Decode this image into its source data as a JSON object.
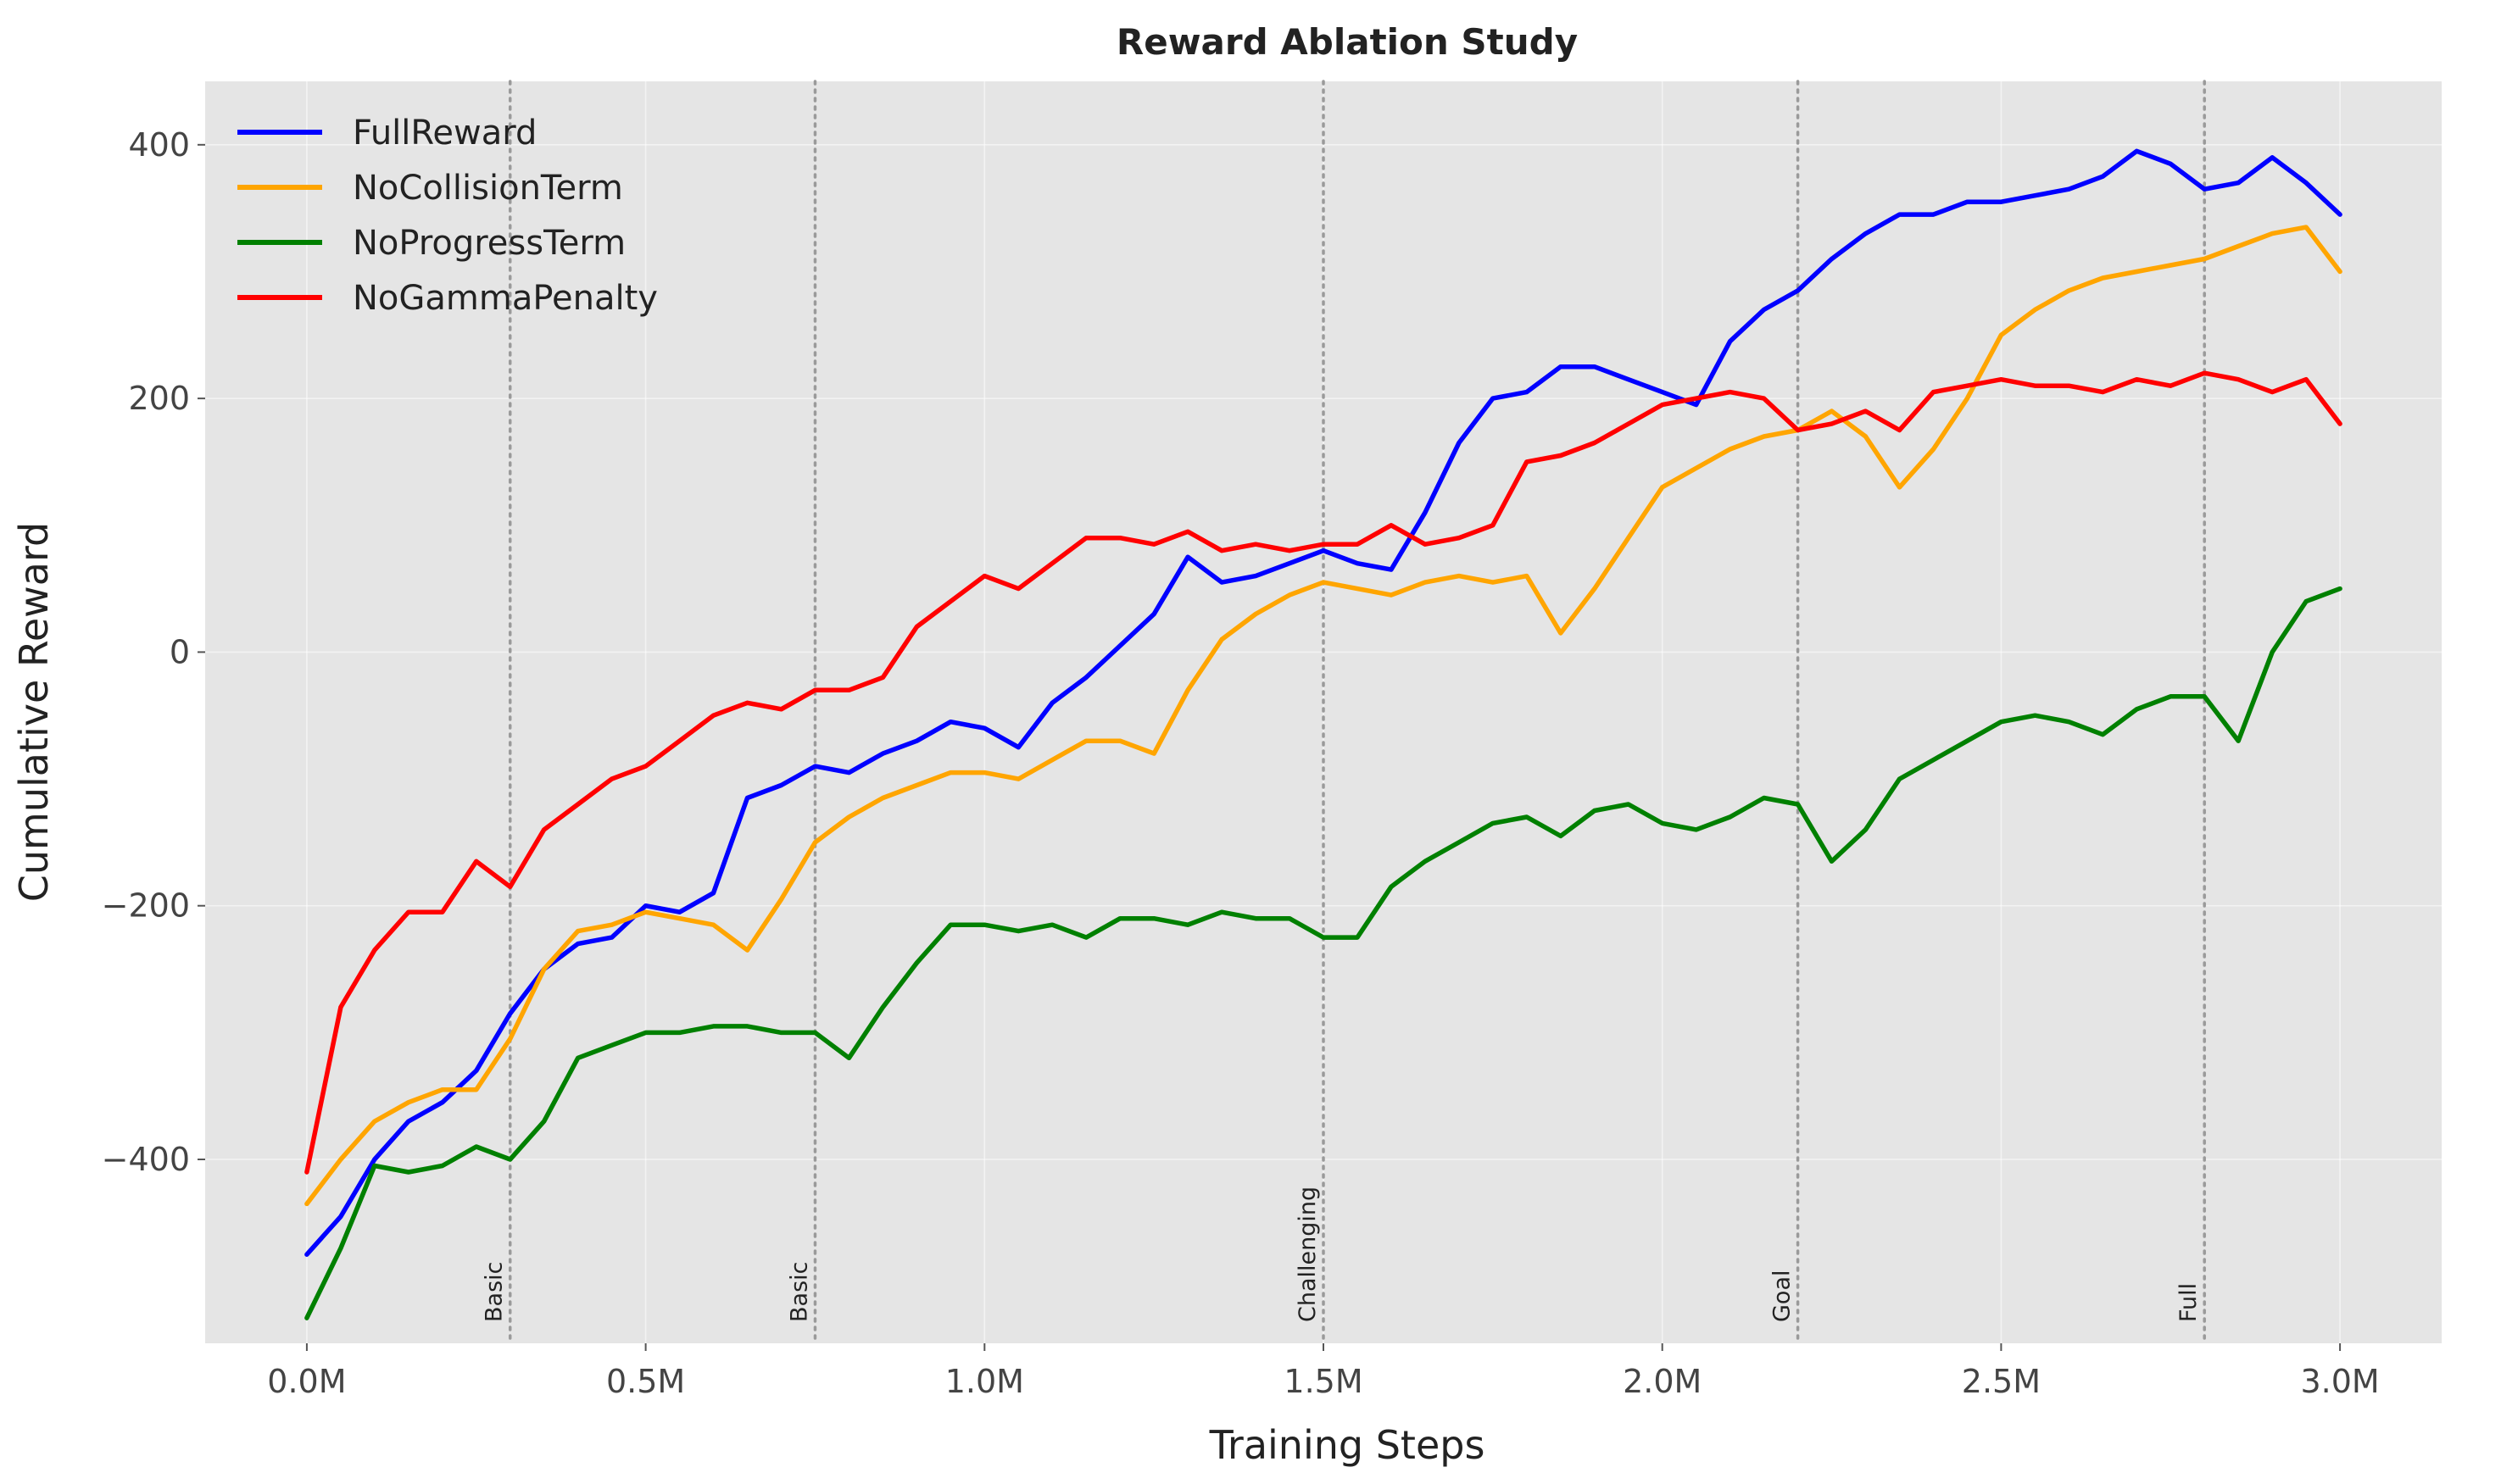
{
  "chart_data": {
    "type": "line",
    "title": "Reward Ablation Study",
    "xlabel": "Training Steps",
    "ylabel": "Cumulative Reward",
    "xlim": [
      -150000,
      3150000
    ],
    "ylim": [
      -545,
      450
    ],
    "x_ticks": [
      0,
      500000,
      1000000,
      1500000,
      2000000,
      2500000,
      3000000
    ],
    "x_tick_labels": [
      "0.0M",
      "0.5M",
      "1.0M",
      "1.5M",
      "2.0M",
      "2.5M",
      "3.0M"
    ],
    "y_ticks": [
      -400,
      -200,
      0,
      200,
      400
    ],
    "y_tick_labels": [
      "−400",
      "−200",
      "0",
      "200",
      "400"
    ],
    "grid": true,
    "legend_position": "top-left",
    "stage_markers": [
      {
        "x": 300000,
        "label": "Basic"
      },
      {
        "x": 750000,
        "label": "Basic"
      },
      {
        "x": 1500000,
        "label": "Challenging"
      },
      {
        "x": 2200000,
        "label": "Goal"
      },
      {
        "x": 2800000,
        "label": "Full"
      }
    ],
    "series": [
      {
        "name": "FullReward",
        "color": "#0000ff",
        "x": [
          0,
          50000,
          100000,
          150000,
          200000,
          250000,
          300000,
          350000,
          400000,
          450000,
          500000,
          550000,
          600000,
          650000,
          700000,
          750000,
          800000,
          850000,
          900000,
          950000,
          1000000,
          1050000,
          1100000,
          1150000,
          1200000,
          1250000,
          1300000,
          1350000,
          1400000,
          1450000,
          1500000,
          1550000,
          1600000,
          1650000,
          1700000,
          1750000,
          1800000,
          1850000,
          1900000,
          1950000,
          2000000,
          2050000,
          2100000,
          2150000,
          2200000,
          2250000,
          2300000,
          2350000,
          2400000,
          2450000,
          2500000,
          2550000,
          2600000,
          2650000,
          2700000,
          2750000,
          2800000,
          2850000,
          2900000,
          2950000,
          3000000
        ],
        "y": [
          -475,
          -445,
          -400,
          -370,
          -355,
          -330,
          -285,
          -250,
          -230,
          -225,
          -200,
          -205,
          -190,
          -115,
          -105,
          -90,
          -95,
          -80,
          -70,
          -55,
          -60,
          -75,
          -40,
          -20,
          5,
          30,
          75,
          55,
          60,
          70,
          80,
          70,
          65,
          110,
          165,
          200,
          205,
          225,
          225,
          215,
          205,
          195,
          245,
          270,
          285,
          310,
          330,
          345,
          345,
          355,
          355,
          360,
          365,
          375,
          395,
          385,
          365,
          370,
          390,
          370,
          345
        ]
      },
      {
        "name": "NoCollisionTerm",
        "color": "#ffa500",
        "x": [
          0,
          50000,
          100000,
          150000,
          200000,
          250000,
          300000,
          350000,
          400000,
          450000,
          500000,
          550000,
          600000,
          650000,
          700000,
          750000,
          800000,
          850000,
          900000,
          950000,
          1000000,
          1050000,
          1100000,
          1150000,
          1200000,
          1250000,
          1300000,
          1350000,
          1400000,
          1450000,
          1500000,
          1550000,
          1600000,
          1650000,
          1700000,
          1750000,
          1800000,
          1850000,
          1900000,
          1950000,
          2000000,
          2050000,
          2100000,
          2150000,
          2200000,
          2250000,
          2300000,
          2350000,
          2400000,
          2450000,
          2500000,
          2550000,
          2600000,
          2650000,
          2700000,
          2750000,
          2800000,
          2850000,
          2900000,
          2950000,
          3000000
        ],
        "y": [
          -435,
          -400,
          -370,
          -355,
          -345,
          -345,
          -305,
          -250,
          -220,
          -215,
          -205,
          -210,
          -215,
          -235,
          -195,
          -150,
          -130,
          -115,
          -105,
          -95,
          -95,
          -100,
          -85,
          -70,
          -70,
          -80,
          -30,
          10,
          30,
          45,
          55,
          50,
          45,
          55,
          60,
          55,
          60,
          15,
          50,
          90,
          130,
          145,
          160,
          170,
          175,
          190,
          170,
          130,
          160,
          200,
          250,
          270,
          285,
          295,
          300,
          305,
          310,
          320,
          330,
          335,
          300
        ]
      },
      {
        "name": "NoProgressTerm",
        "color": "#008000",
        "x": [
          0,
          50000,
          100000,
          150000,
          200000,
          250000,
          300000,
          350000,
          400000,
          450000,
          500000,
          550000,
          600000,
          650000,
          700000,
          750000,
          800000,
          850000,
          900000,
          950000,
          1000000,
          1050000,
          1100000,
          1150000,
          1200000,
          1250000,
          1300000,
          1350000,
          1400000,
          1450000,
          1500000,
          1550000,
          1600000,
          1650000,
          1700000,
          1750000,
          1800000,
          1850000,
          1900000,
          1950000,
          2000000,
          2050000,
          2100000,
          2150000,
          2200000,
          2250000,
          2300000,
          2350000,
          2400000,
          2450000,
          2500000,
          2550000,
          2600000,
          2650000,
          2700000,
          2750000,
          2800000,
          2850000,
          2900000,
          2950000,
          3000000
        ],
        "y": [
          -525,
          -470,
          -405,
          -410,
          -405,
          -390,
          -400,
          -370,
          -320,
          -310,
          -300,
          -300,
          -295,
          -295,
          -300,
          -300,
          -320,
          -280,
          -245,
          -215,
          -215,
          -220,
          -215,
          -225,
          -210,
          -210,
          -215,
          -205,
          -210,
          -210,
          -225,
          -225,
          -185,
          -165,
          -150,
          -135,
          -130,
          -145,
          -125,
          -120,
          -135,
          -140,
          -130,
          -115,
          -120,
          -165,
          -140,
          -100,
          -85,
          -70,
          -55,
          -50,
          -55,
          -65,
          -45,
          -35,
          -35,
          -70,
          0,
          40,
          50
        ]
      },
      {
        "name": "NoGammaPenalty",
        "color": "#ff0000",
        "x": [
          0,
          50000,
          100000,
          150000,
          200000,
          250000,
          300000,
          350000,
          400000,
          450000,
          500000,
          550000,
          600000,
          650000,
          700000,
          750000,
          800000,
          850000,
          900000,
          950000,
          1000000,
          1050000,
          1100000,
          1150000,
          1200000,
          1250000,
          1300000,
          1350000,
          1400000,
          1450000,
          1500000,
          1550000,
          1600000,
          1650000,
          1700000,
          1750000,
          1800000,
          1850000,
          1900000,
          1950000,
          2000000,
          2050000,
          2100000,
          2150000,
          2200000,
          2250000,
          2300000,
          2350000,
          2400000,
          2450000,
          2500000,
          2550000,
          2600000,
          2650000,
          2700000,
          2750000,
          2800000,
          2850000,
          2900000,
          2950000,
          3000000
        ],
        "y": [
          -410,
          -280,
          -235,
          -205,
          -205,
          -165,
          -185,
          -140,
          -120,
          -100,
          -90,
          -70,
          -50,
          -40,
          -45,
          -30,
          -30,
          -20,
          20,
          40,
          60,
          50,
          70,
          90,
          90,
          85,
          95,
          80,
          85,
          80,
          85,
          85,
          100,
          85,
          90,
          100,
          150,
          155,
          165,
          180,
          195,
          200,
          205,
          200,
          175,
          180,
          190,
          175,
          205,
          210,
          215,
          210,
          210,
          205,
          215,
          210,
          220,
          215,
          205,
          215,
          180
        ]
      }
    ]
  }
}
